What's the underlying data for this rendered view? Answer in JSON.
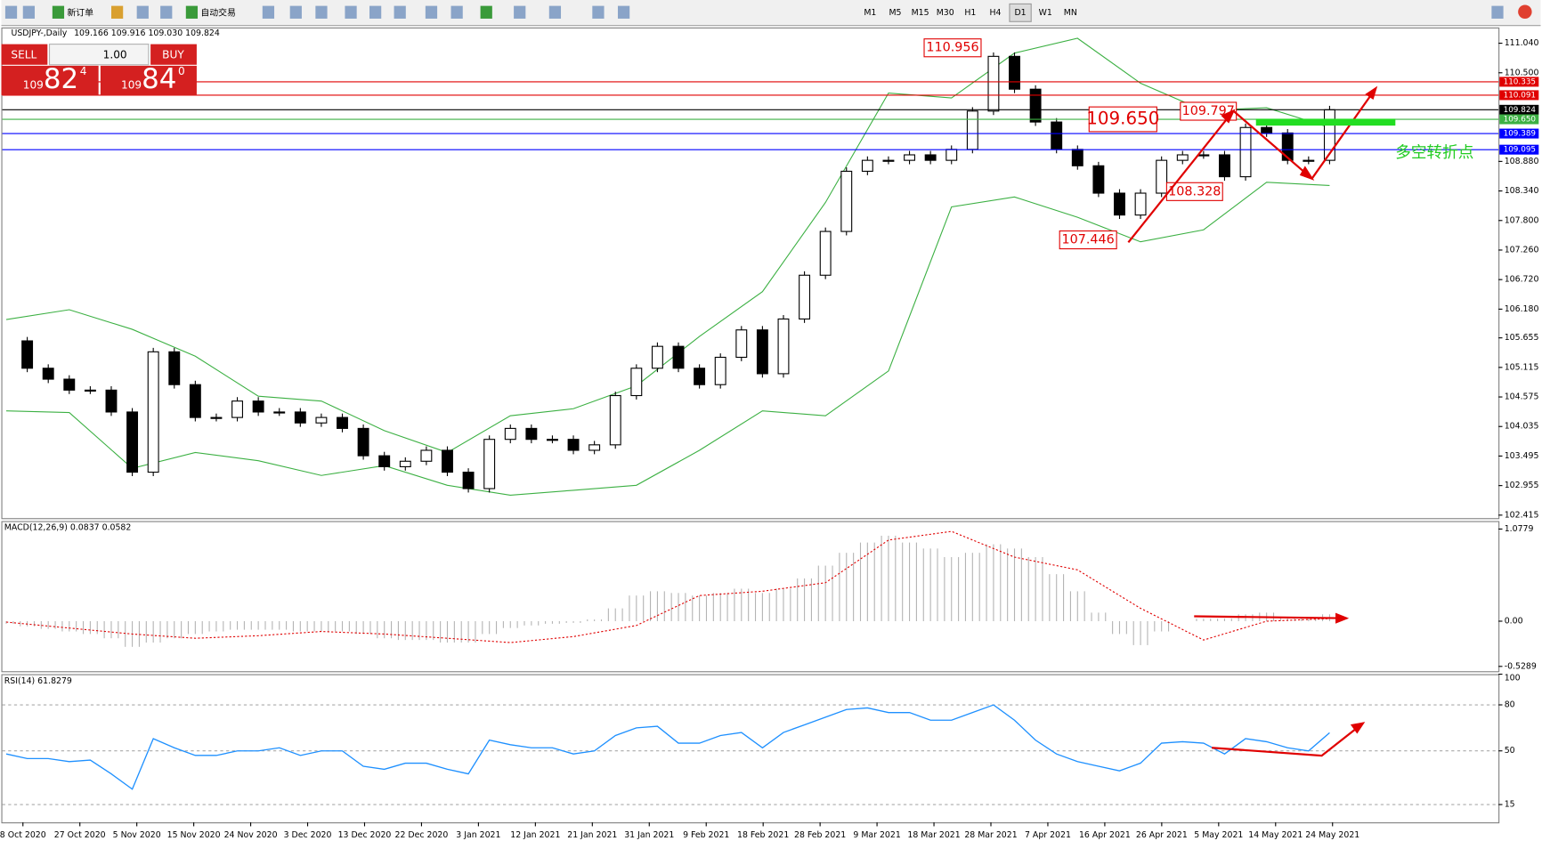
{
  "toolbar": {
    "new_order": "新订单",
    "auto_trading": "自动交易",
    "timeframes": [
      "M1",
      "M5",
      "M15",
      "M30",
      "H1",
      "H4",
      "D1",
      "W1",
      "MN"
    ]
  },
  "trade_panel": {
    "sell": "SELL",
    "buy": "BUY",
    "lots": "1.00",
    "bid": {
      "big": "109",
      "mid": "82",
      "small": "4"
    },
    "ask": {
      "big": "109",
      "mid": "84",
      "small": "0"
    }
  },
  "chart_data": [
    {
      "type": "candlestick",
      "title": "USDJPY-,Daily",
      "ohlc_label": "109.166 109.916 109.030 109.824",
      "closes": [
        105.6,
        105.1,
        104.9,
        104.7,
        104.7,
        104.3,
        103.2,
        105.4,
        104.8,
        104.2,
        104.2,
        104.5,
        104.3,
        104.3,
        104.1,
        104.2,
        104.0,
        103.5,
        103.3,
        103.4,
        103.6,
        103.2,
        102.9,
        103.8,
        104.0,
        103.8,
        103.8,
        103.6,
        103.7,
        104.6,
        105.1,
        105.5,
        105.1,
        104.8,
        105.3,
        105.8,
        105.0,
        106.0,
        106.8,
        107.6,
        108.7,
        108.9,
        108.9,
        109.0,
        108.9,
        109.1,
        109.8,
        110.8,
        110.2,
        109.6,
        109.1,
        108.8,
        108.3,
        107.9,
        108.3,
        108.9,
        109.0,
        109.0,
        108.6,
        109.5,
        109.4,
        108.9,
        108.9,
        109.824
      ],
      "bands": {
        "color": "#3cb043",
        "upper": [
          105.99,
          106.17,
          105.81,
          105.32,
          104.59,
          104.5,
          103.96,
          103.56,
          104.23,
          104.36,
          104.78,
          105.68,
          106.5,
          108.13,
          110.13,
          110.04,
          110.86,
          111.13,
          110.31,
          109.81,
          109.86,
          109.5
        ],
        "lower": [
          104.32,
          104.29,
          103.27,
          103.56,
          103.41,
          103.14,
          103.32,
          102.96,
          102.78,
          102.87,
          102.96,
          103.6,
          104.32,
          104.23,
          105.05,
          108.05,
          108.23,
          107.86,
          107.41,
          107.63,
          108.5,
          108.44
        ]
      },
      "ylim": [
        102.36,
        111.31
      ],
      "yticks": [
        {
          "value": 111.04,
          "label": "111.040"
        },
        {
          "value": 110.5,
          "label": "110.500"
        },
        {
          "value": 108.88,
          "label": "108.880"
        },
        {
          "value": 108.34,
          "label": "108.340"
        },
        {
          "value": 107.8,
          "label": "107.800"
        },
        {
          "value": 107.26,
          "label": "107.260"
        },
        {
          "value": 106.72,
          "label": "106.720"
        },
        {
          "value": 106.18,
          "label": "106.180"
        },
        105.655,
        105.115,
        104.575,
        104.035,
        103.495,
        102.955,
        102.415
      ],
      "price_lines": [
        {
          "value": 110.335,
          "label": "110.335",
          "color": "#e00000"
        },
        {
          "value": 110.091,
          "label": "110.091",
          "color": "#e00000"
        },
        {
          "value": 109.824,
          "label": "109.824",
          "color": "#000000"
        },
        {
          "value": 109.65,
          "label": "109.650",
          "color": "#3cb043"
        },
        {
          "value": 109.389,
          "label": "109.389",
          "color": "#0000ff"
        },
        {
          "value": 109.095,
          "label": "109.095",
          "color": "#0000ff"
        }
      ],
      "annotations": [
        {
          "value": 110.956,
          "label": "110.956"
        },
        {
          "value": 109.65,
          "label": "109.650"
        },
        {
          "value": 109.797,
          "label": "109.797"
        },
        {
          "value": 108.328,
          "label": "108.328"
        },
        {
          "value": 107.446,
          "label": "107.446"
        }
      ],
      "note": "多空转折点",
      "x_labels": [
        "8 Oct 2020",
        "27 Oct 2020",
        "5 Nov 2020",
        "15 Nov 2020",
        "24 Nov 2020",
        "3 Dec 2020",
        "13 Dec 2020",
        "22 Dec 2020",
        "3 Jan 2021",
        "12 Jan 2021",
        "21 Jan 2021",
        "31 Jan 2021",
        "9 Feb 2021",
        "18 Feb 2021",
        "28 Feb 2021",
        "9 Mar 2021",
        "18 Mar 2021",
        "28 Mar 2021",
        "7 Apr 2021",
        "16 Apr 2021",
        "26 Apr 2021",
        "5 May 2021",
        "14 May 2021",
        "24 May 2021"
      ]
    },
    {
      "type": "macd",
      "title": "MACD(12,26,9) 0.0837 0.0582",
      "histogram": [
        -0.03,
        -0.06,
        -0.09,
        -0.12,
        -0.15,
        -0.2,
        -0.3,
        -0.25,
        -0.2,
        -0.15,
        -0.12,
        -0.1,
        -0.1,
        -0.1,
        -0.12,
        -0.12,
        -0.12,
        -0.15,
        -0.2,
        -0.22,
        -0.22,
        -0.25,
        -0.25,
        -0.15,
        -0.08,
        -0.05,
        -0.03,
        -0.02,
        0.02,
        0.15,
        0.3,
        0.35,
        0.33,
        0.3,
        0.33,
        0.38,
        0.33,
        0.38,
        0.5,
        0.65,
        0.8,
        0.92,
        1.0,
        0.92,
        0.85,
        0.75,
        0.8,
        0.9,
        0.85,
        0.75,
        0.55,
        0.35,
        0.1,
        -0.15,
        -0.28,
        -0.12,
        0.0,
        0.03,
        0.03,
        0.08,
        0.1,
        0.05,
        0.03,
        0.08
      ],
      "signal": [
        -0.01,
        -0.08,
        -0.15,
        -0.2,
        -0.17,
        -0.12,
        -0.15,
        -0.2,
        -0.25,
        -0.18,
        -0.05,
        0.3,
        0.35,
        0.45,
        0.95,
        1.05,
        0.75,
        0.6,
        0.15,
        -0.22,
        0.0,
        0.03
      ],
      "ylim": [
        -0.597,
        1.171
      ],
      "yticks": [
        1.0779,
        {
          "value": 0,
          "label": "0.00"
        },
        -0.5289
      ]
    },
    {
      "type": "rsi",
      "title": "RSI(14) 61.8279",
      "color": "#1e90ff",
      "values": [
        48,
        45,
        45,
        43,
        44,
        35,
        25,
        58,
        52,
        47,
        47,
        50,
        50,
        52,
        47,
        50,
        50,
        40,
        38,
        42,
        42,
        38,
        35,
        57,
        54,
        52,
        52,
        48,
        50,
        60,
        65,
        66,
        55,
        55,
        60,
        62,
        52,
        62,
        67,
        72,
        77,
        78,
        75,
        75,
        70,
        70,
        75,
        80,
        70,
        57,
        48,
        43,
        40,
        37,
        42,
        55,
        56,
        55,
        48,
        58,
        56,
        52,
        50,
        61.8279
      ],
      "ylim": [
        3.4,
        100
      ],
      "yticks": [
        100,
        80,
        50,
        15
      ]
    }
  ]
}
